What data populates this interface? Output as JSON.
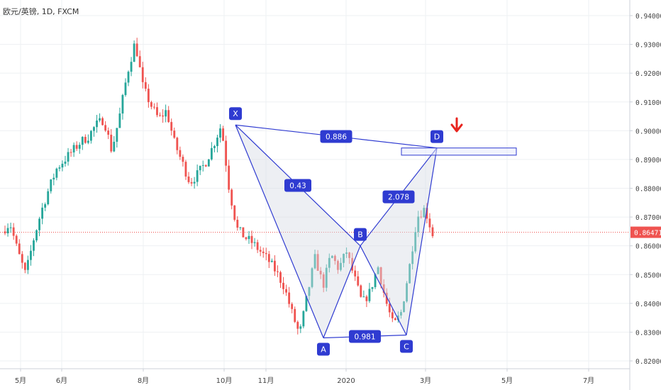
{
  "chart_data": {
    "type": "candlestick",
    "title": "欧元/英镑, 1D, FXCM",
    "x_axis_labels": [
      "5月",
      "6月",
      "8月",
      "10月",
      "11月",
      "2020",
      "3月",
      "5月",
      "7月"
    ],
    "y_axis_labels": [
      "0.94000",
      "0.93000",
      "0.92000",
      "0.91000",
      "0.90000",
      "0.89000",
      "0.88000",
      "0.87000",
      "0.86000",
      "0.85000",
      "0.84000",
      "0.83000",
      "0.82000"
    ],
    "ylim": [
      0.8175,
      0.9445
    ],
    "current_price": "0.86471",
    "colors": {
      "up": "#26a69a",
      "down": "#ef5350",
      "pattern": "#2f3bd1",
      "pattern_fill": "#d8dbe4",
      "arrow": "#e8241e",
      "price_line": "#ef5350"
    },
    "pattern": {
      "points": [
        {
          "name": "X",
          "value": 0.902
        },
        {
          "name": "A",
          "value": 0.828
        },
        {
          "name": "B",
          "value": 0.86
        },
        {
          "name": "C",
          "value": 0.829
        },
        {
          "name": "D",
          "value": 0.894
        }
      ],
      "ratios": [
        "0.886",
        "0.43",
        "2.078",
        "0.981"
      ],
      "target_zone": [
        0.8915,
        0.894
      ],
      "signal": "down-arrow"
    },
    "price_path": [
      0.865,
      0.868,
      0.858,
      0.85,
      0.862,
      0.872,
      0.88,
      0.887,
      0.89,
      0.893,
      0.896,
      0.898,
      0.902,
      0.904,
      0.893,
      0.905,
      0.92,
      0.931,
      0.915,
      0.909,
      0.904,
      0.907,
      0.896,
      0.889,
      0.882,
      0.885,
      0.889,
      0.895,
      0.902,
      0.88,
      0.866,
      0.863,
      0.861,
      0.858,
      0.855,
      0.851,
      0.846,
      0.837,
      0.829,
      0.843,
      0.856,
      0.846,
      0.857,
      0.852,
      0.858,
      0.849,
      0.84,
      0.844,
      0.853,
      0.841,
      0.832,
      0.837,
      0.852,
      0.87,
      0.873,
      0.864
    ]
  }
}
